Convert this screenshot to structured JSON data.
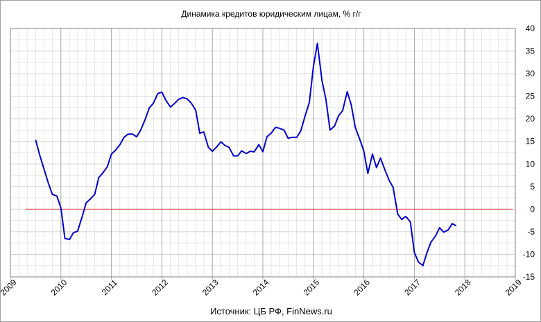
{
  "chart_data": {
    "type": "line",
    "title": "Динамика кредитов юридическим лицам, % г/г",
    "source": "Источник: ЦБ РФ, FinNews.ru",
    "xlabel": "",
    "ylabel": "",
    "xlim": [
      2009,
      2019
    ],
    "ylim": [
      -15,
      40
    ],
    "x_ticks": [
      "2009",
      "2010",
      "2011",
      "2012",
      "2013",
      "2014",
      "2015",
      "2016",
      "2017",
      "2018",
      "2019"
    ],
    "y_ticks": [
      "40",
      "35",
      "30",
      "25",
      "20",
      "15",
      "10",
      "5",
      "0",
      "-5",
      "-10",
      "-15"
    ],
    "grid": true,
    "colors": {
      "series": "#0000cc",
      "zero_line": "#e03030",
      "grid": "#d0d0d0",
      "axis": "#808080"
    },
    "reference_line": {
      "y": 0,
      "x_start": 2009.3,
      "x_end": 2018.95
    },
    "series": [
      {
        "values": [
          [
            2009.5,
            15.3
          ],
          [
            2009.58,
            12.0
          ],
          [
            2009.67,
            8.7
          ],
          [
            2009.75,
            5.8
          ],
          [
            2009.83,
            3.3
          ],
          [
            2009.92,
            2.9
          ],
          [
            2010.0,
            0.3
          ],
          [
            2010.08,
            -6.5
          ],
          [
            2010.17,
            -6.7
          ],
          [
            2010.25,
            -5.2
          ],
          [
            2010.33,
            -4.9
          ],
          [
            2010.42,
            -1.7
          ],
          [
            2010.5,
            1.4
          ],
          [
            2010.58,
            2.2
          ],
          [
            2010.67,
            3.3
          ],
          [
            2010.75,
            7.0
          ],
          [
            2010.83,
            8.0
          ],
          [
            2010.92,
            9.4
          ],
          [
            2011.0,
            12.2
          ],
          [
            2011.08,
            13.0
          ],
          [
            2011.17,
            14.3
          ],
          [
            2011.25,
            15.9
          ],
          [
            2011.33,
            16.6
          ],
          [
            2011.42,
            16.6
          ],
          [
            2011.5,
            16.0
          ],
          [
            2011.58,
            17.5
          ],
          [
            2011.67,
            19.9
          ],
          [
            2011.75,
            22.4
          ],
          [
            2011.83,
            23.4
          ],
          [
            2011.92,
            25.6
          ],
          [
            2012.0,
            25.9
          ],
          [
            2012.08,
            24.1
          ],
          [
            2012.17,
            22.6
          ],
          [
            2012.25,
            23.4
          ],
          [
            2012.33,
            24.3
          ],
          [
            2012.42,
            24.7
          ],
          [
            2012.5,
            24.4
          ],
          [
            2012.58,
            23.5
          ],
          [
            2012.67,
            21.9
          ],
          [
            2012.75,
            16.8
          ],
          [
            2012.83,
            17.1
          ],
          [
            2012.92,
            13.7
          ],
          [
            2013.0,
            12.8
          ],
          [
            2013.08,
            13.7
          ],
          [
            2013.17,
            14.9
          ],
          [
            2013.25,
            14.1
          ],
          [
            2013.33,
            13.7
          ],
          [
            2013.42,
            11.8
          ],
          [
            2013.5,
            11.8
          ],
          [
            2013.58,
            12.9
          ],
          [
            2013.67,
            12.3
          ],
          [
            2013.75,
            12.8
          ],
          [
            2013.83,
            12.7
          ],
          [
            2013.92,
            14.3
          ],
          [
            2014.0,
            12.7
          ],
          [
            2014.08,
            16.0
          ],
          [
            2014.17,
            16.9
          ],
          [
            2014.25,
            18.1
          ],
          [
            2014.33,
            17.9
          ],
          [
            2014.42,
            17.5
          ],
          [
            2014.5,
            15.7
          ],
          [
            2014.58,
            15.9
          ],
          [
            2014.67,
            15.9
          ],
          [
            2014.75,
            17.3
          ],
          [
            2014.83,
            20.4
          ],
          [
            2014.92,
            23.6
          ],
          [
            2015.0,
            31.5
          ],
          [
            2015.08,
            36.7
          ],
          [
            2015.17,
            28.5
          ],
          [
            2015.25,
            24.2
          ],
          [
            2015.33,
            17.5
          ],
          [
            2015.42,
            18.4
          ],
          [
            2015.5,
            20.7
          ],
          [
            2015.58,
            21.8
          ],
          [
            2015.67,
            26.0
          ],
          [
            2015.75,
            23.1
          ],
          [
            2015.83,
            18.1
          ],
          [
            2015.92,
            15.4
          ],
          [
            2016.0,
            12.8
          ],
          [
            2016.08,
            7.9
          ],
          [
            2016.17,
            12.2
          ],
          [
            2016.25,
            9.2
          ],
          [
            2016.33,
            11.3
          ],
          [
            2016.42,
            8.6
          ],
          [
            2016.5,
            6.4
          ],
          [
            2016.58,
            4.8
          ],
          [
            2016.67,
            -1.1
          ],
          [
            2016.75,
            -2.3
          ],
          [
            2016.83,
            -1.6
          ],
          [
            2016.92,
            -2.8
          ],
          [
            2017.0,
            -9.6
          ],
          [
            2017.08,
            -11.7
          ],
          [
            2017.17,
            -12.5
          ],
          [
            2017.25,
            -9.6
          ],
          [
            2017.33,
            -7.3
          ],
          [
            2017.42,
            -5.9
          ],
          [
            2017.5,
            -4.1
          ],
          [
            2017.58,
            -5.1
          ],
          [
            2017.67,
            -4.6
          ],
          [
            2017.75,
            -3.2
          ],
          [
            2017.83,
            -3.7
          ]
        ]
      }
    ]
  }
}
